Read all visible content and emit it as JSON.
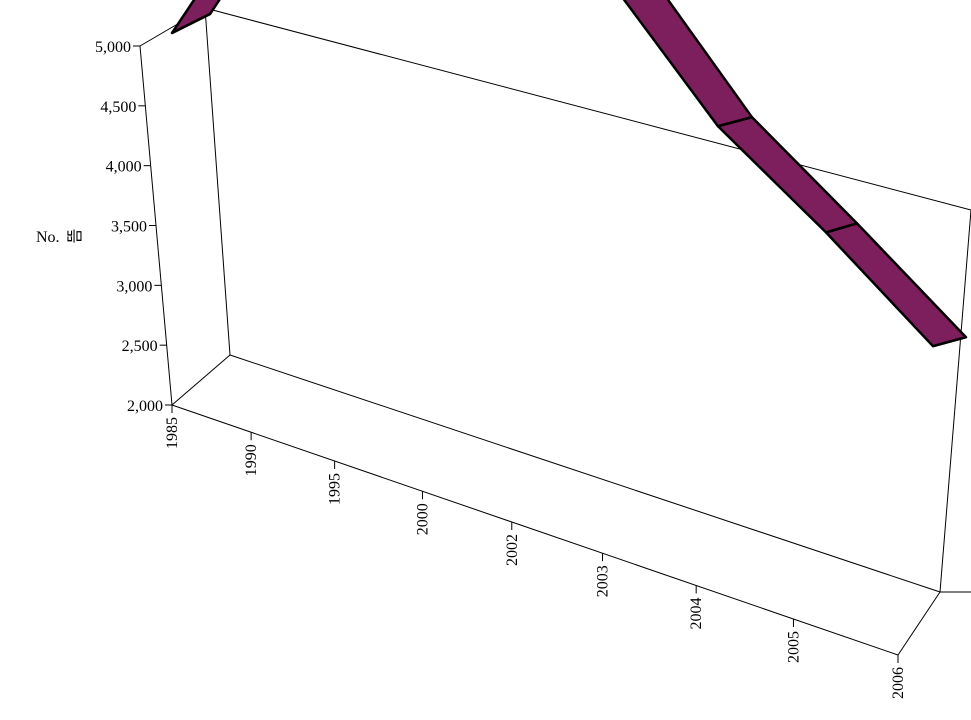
{
  "chart_data": {
    "type": "area",
    "title": "",
    "xlabel": "",
    "ylabel": "No.",
    "ylabel_glyph": "뜸",
    "categories": [
      "1985",
      "1990",
      "1995",
      "2000",
      "2002",
      "2003",
      "2004",
      "2005",
      "2006"
    ],
    "y_ticks": [
      "2,000",
      "2,500",
      "3,000",
      "3,500",
      "4,000",
      "4,500",
      "5,000"
    ],
    "ylim": [
      2000,
      5000
    ],
    "series": [
      {
        "values": [
          2930,
          3290,
          3610,
          4030,
          3610,
          3450,
          3210,
          3020,
          2810
        ]
      }
    ],
    "colors": {
      "ribbon": "#7d1f5c",
      "frame": "#000000"
    },
    "grid": false,
    "legend": "none"
  }
}
